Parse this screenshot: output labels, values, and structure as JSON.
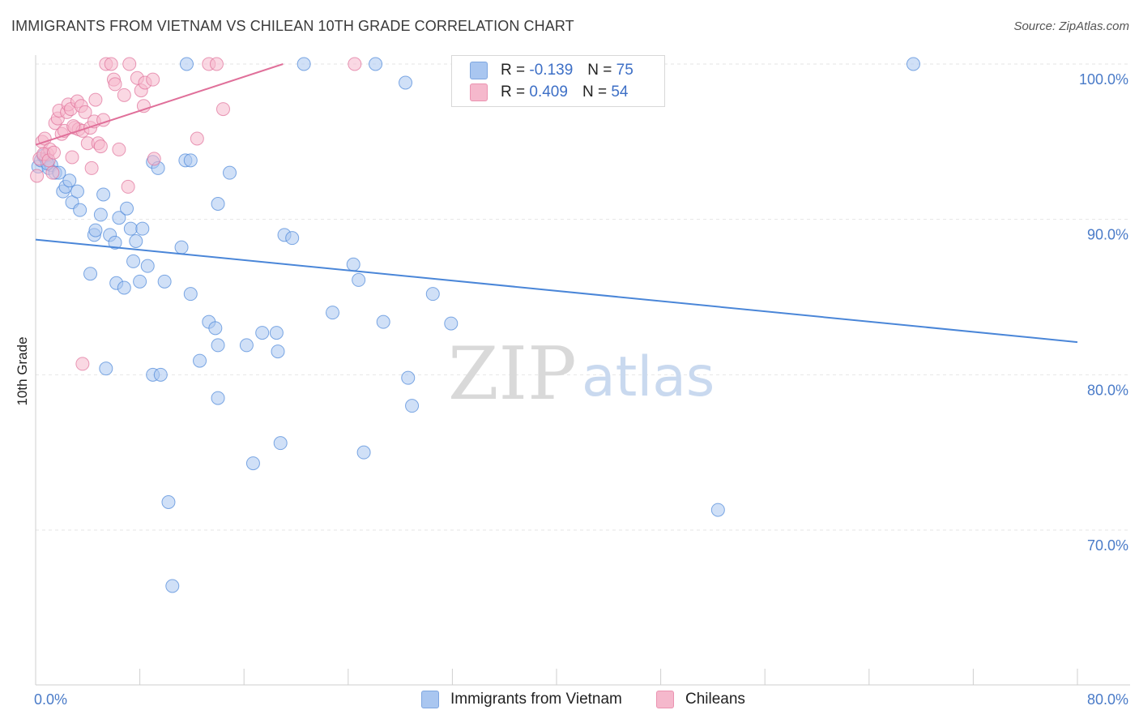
{
  "header": {
    "title": "IMMIGRANTS FROM VIETNAM VS CHILEAN 10TH GRADE CORRELATION CHART",
    "source": "Source: ZipAtlas.com"
  },
  "watermark": {
    "zip": "ZIP",
    "atlas": "atlas"
  },
  "legend": {
    "rows": [
      {
        "r_label": "R =",
        "r_value": "-0.139",
        "n_label": "N =",
        "n_value": "75",
        "color": "#a9c6f0"
      },
      {
        "r_label": "R =",
        "r_value": "0.409",
        "n_label": "N =",
        "n_value": "54",
        "color": "#f5b8cc"
      }
    ]
  },
  "bottom_legend": [
    {
      "label": "Immigrants from Vietnam",
      "color": "#a9c6f0"
    },
    {
      "label": "Chileans",
      "color": "#f5b8cc"
    }
  ],
  "chart_data": {
    "type": "scatter",
    "title": "IMMIGRANTS FROM VIETNAM VS CHILEAN 10TH GRADE CORRELATION CHART",
    "ylabel": "10th Grade",
    "xlabel": "",
    "xlim": [
      0,
      80
    ],
    "ylim": [
      60.5,
      101
    ],
    "x_tick_labels": [
      "0.0%",
      "80.0%"
    ],
    "y_ticks": [
      {
        "value": 100,
        "label": "100.0%"
      },
      {
        "value": 90,
        "label": "90.0%"
      },
      {
        "value": 80,
        "label": "80.0%"
      },
      {
        "value": 70,
        "label": "70.0%"
      }
    ],
    "grid": true,
    "legend_position": "top-center",
    "series": [
      {
        "name": "Immigrants from Vietnam",
        "color": "#4a86d8",
        "fill": "#a9c6f0",
        "trend": {
          "x": [
            0,
            80
          ],
          "y": [
            88.7,
            82.1
          ]
        },
        "points": [
          [
            0.2,
            93.4
          ],
          [
            0.4,
            93.8
          ],
          [
            0.6,
            94.1
          ],
          [
            0.8,
            93.9
          ],
          [
            1.0,
            93.3
          ],
          [
            1.2,
            93.5
          ],
          [
            1.5,
            93.0
          ],
          [
            2.1,
            91.8
          ],
          [
            2.3,
            92.1
          ],
          [
            2.6,
            92.5
          ],
          [
            2.8,
            91.1
          ],
          [
            3.2,
            91.8
          ],
          [
            3.4,
            90.6
          ],
          [
            5.2,
            91.6
          ],
          [
            4.5,
            89.0
          ],
          [
            4.6,
            89.3
          ],
          [
            5.0,
            90.3
          ],
          [
            5.7,
            89.0
          ],
          [
            6.1,
            88.5
          ],
          [
            6.4,
            90.1
          ],
          [
            7.0,
            90.7
          ],
          [
            7.3,
            89.4
          ],
          [
            7.7,
            88.6
          ],
          [
            8.2,
            89.4
          ],
          [
            8.6,
            87.0
          ],
          [
            7.5,
            87.3
          ],
          [
            4.2,
            86.5
          ],
          [
            6.2,
            85.9
          ],
          [
            6.8,
            85.6
          ],
          [
            8.0,
            86.0
          ],
          [
            9.9,
            86.0
          ],
          [
            11.2,
            88.2
          ],
          [
            11.9,
            85.2
          ],
          [
            9.0,
            93.7
          ],
          [
            9.4,
            93.3
          ],
          [
            11.5,
            93.8
          ],
          [
            11.9,
            93.8
          ],
          [
            14.9,
            93.0
          ],
          [
            14.0,
            91.0
          ],
          [
            19.1,
            89.0
          ],
          [
            19.7,
            88.8
          ],
          [
            11.6,
            100.0
          ],
          [
            20.6,
            100.0
          ],
          [
            26.1,
            100.0
          ],
          [
            28.4,
            98.8
          ],
          [
            67.4,
            100.0
          ],
          [
            37.3,
            100.0
          ],
          [
            13.3,
            83.4
          ],
          [
            13.8,
            83.0
          ],
          [
            14.0,
            81.9
          ],
          [
            12.6,
            80.9
          ],
          [
            16.2,
            81.9
          ],
          [
            17.4,
            82.7
          ],
          [
            18.5,
            82.7
          ],
          [
            18.6,
            81.5
          ],
          [
            22.8,
            84.0
          ],
          [
            24.4,
            87.1
          ],
          [
            24.8,
            86.1
          ],
          [
            26.7,
            83.4
          ],
          [
            28.6,
            79.8
          ],
          [
            28.9,
            78.0
          ],
          [
            30.5,
            85.2
          ],
          [
            31.9,
            83.3
          ],
          [
            5.4,
            80.4
          ],
          [
            9.0,
            80.0
          ],
          [
            9.6,
            80.0
          ],
          [
            14.0,
            78.5
          ],
          [
            16.7,
            74.3
          ],
          [
            18.8,
            75.6
          ],
          [
            25.2,
            75.0
          ],
          [
            10.2,
            71.8
          ],
          [
            52.4,
            71.3
          ],
          [
            10.5,
            66.4
          ],
          [
            1.8,
            93.0
          ],
          [
            0.9,
            93.6
          ]
        ]
      },
      {
        "name": "Chileans",
        "color": "#e0709a",
        "fill": "#f5b8cc",
        "trend": {
          "x": [
            0,
            19
          ],
          "y": [
            94.8,
            100.0
          ]
        },
        "points": [
          [
            0.1,
            92.8
          ],
          [
            0.3,
            93.9
          ],
          [
            0.5,
            95.0
          ],
          [
            0.7,
            95.2
          ],
          [
            0.9,
            94.2
          ],
          [
            1.1,
            94.5
          ],
          [
            1.3,
            93.0
          ],
          [
            1.5,
            96.2
          ],
          [
            1.7,
            96.5
          ],
          [
            1.8,
            97.0
          ],
          [
            2.0,
            95.5
          ],
          [
            2.2,
            95.7
          ],
          [
            2.4,
            96.9
          ],
          [
            2.5,
            97.4
          ],
          [
            2.7,
            97.1
          ],
          [
            2.8,
            94.0
          ],
          [
            3.0,
            95.9
          ],
          [
            3.2,
            97.6
          ],
          [
            3.3,
            95.8
          ],
          [
            3.5,
            97.3
          ],
          [
            3.6,
            95.7
          ],
          [
            3.8,
            96.9
          ],
          [
            4.0,
            94.9
          ],
          [
            4.2,
            95.9
          ],
          [
            4.3,
            93.3
          ],
          [
            4.5,
            96.3
          ],
          [
            4.6,
            97.7
          ],
          [
            4.8,
            94.9
          ],
          [
            5.0,
            94.7
          ],
          [
            5.2,
            96.4
          ],
          [
            5.4,
            100.0
          ],
          [
            5.8,
            100.0
          ],
          [
            6.0,
            99.0
          ],
          [
            6.1,
            98.7
          ],
          [
            6.4,
            94.5
          ],
          [
            6.8,
            98.0
          ],
          [
            7.1,
            92.1
          ],
          [
            7.2,
            100.0
          ],
          [
            7.8,
            99.1
          ],
          [
            8.1,
            98.3
          ],
          [
            8.3,
            97.3
          ],
          [
            8.4,
            98.8
          ],
          [
            9.0,
            99.0
          ],
          [
            13.3,
            100.0
          ],
          [
            13.9,
            100.0
          ],
          [
            14.4,
            97.1
          ],
          [
            12.4,
            95.2
          ],
          [
            24.5,
            100.0
          ],
          [
            3.6,
            80.7
          ],
          [
            0.6,
            94.2
          ],
          [
            1.0,
            93.8
          ],
          [
            1.4,
            94.3
          ],
          [
            2.9,
            96.0
          ],
          [
            9.1,
            93.9
          ]
        ]
      }
    ]
  }
}
